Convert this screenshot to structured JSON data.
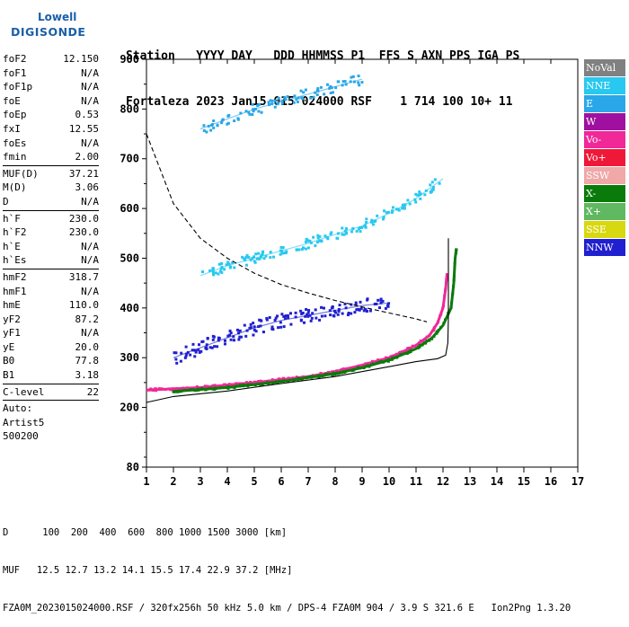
{
  "logo": {
    "line1": "Lowell",
    "line2": "DIGISONDE"
  },
  "header": {
    "line1": "Station   YYYY DAY   DDD HHMMSS P1  FFS S AXN PPS IGA PS",
    "line2": "Fortaleza 2023 Jan15 015 024000 RSF    1 714 100 10+ 11"
  },
  "params": [
    {
      "group": [
        {
          "label": "foF2",
          "value": "12.150"
        },
        {
          "label": "foF1",
          "value": "N/A"
        },
        {
          "label": "foF1p",
          "value": "N/A"
        },
        {
          "label": "foE",
          "value": "N/A"
        },
        {
          "label": "foEp",
          "value": "0.53"
        },
        {
          "label": "fxI",
          "value": "12.55"
        },
        {
          "label": "foEs",
          "value": "N/A"
        },
        {
          "label": "fmin",
          "value": "2.00"
        }
      ]
    },
    {
      "group": [
        {
          "label": "MUF(D)",
          "value": "37.21"
        },
        {
          "label": "M(D)",
          "value": "3.06"
        },
        {
          "label": "D",
          "value": "N/A"
        }
      ]
    },
    {
      "group": [
        {
          "label": "h`F",
          "value": "230.0"
        },
        {
          "label": "h`F2",
          "value": "230.0"
        },
        {
          "label": "h`E",
          "value": "N/A"
        },
        {
          "label": "h`Es",
          "value": "N/A"
        }
      ]
    },
    {
      "group": [
        {
          "label": "hmF2",
          "value": "318.7"
        },
        {
          "label": "hmF1",
          "value": "N/A"
        },
        {
          "label": "hmE",
          "value": "110.0"
        },
        {
          "label": "yF2",
          "value": "87.2"
        },
        {
          "label": "yF1",
          "value": "N/A"
        },
        {
          "label": "yE",
          "value": "20.0"
        },
        {
          "label": "B0",
          "value": "77.8"
        },
        {
          "label": "B1",
          "value": "3.18"
        }
      ]
    },
    {
      "group": [
        {
          "label": "C-level",
          "value": "22"
        }
      ]
    },
    {
      "group": [
        {
          "label": "Auto:",
          "value": ""
        },
        {
          "label": "Artist5",
          "value": ""
        },
        {
          "label": "500200",
          "value": ""
        }
      ]
    }
  ],
  "legend": [
    {
      "label": "NoVal",
      "color": "#808080"
    },
    {
      "label": "NNE",
      "color": "#29c8f0"
    },
    {
      "label": "E",
      "color": "#2aa7e8"
    },
    {
      "label": "W",
      "color": "#a010a0"
    },
    {
      "label": "Vo-",
      "color": "#f02898"
    },
    {
      "label": "Vo+",
      "color": "#f01838"
    },
    {
      "label": "SSW",
      "color": "#f0a8a8"
    },
    {
      "label": "X-",
      "color": "#0a7a0a"
    },
    {
      "label": "X+",
      "color": "#60b860"
    },
    {
      "label": "SSE",
      "color": "#d8d810"
    },
    {
      "label": "NNW",
      "color": "#2020d0"
    }
  ],
  "footer": {
    "line1": "D      100  200  400  600  800 1000 1500 3000 [km]",
    "line2": "MUF   12.5 12.7 13.2 14.1 15.5 17.4 22.9 37.2 [MHz]",
    "line3": "FZA0M_2023015024000.RSF / 320fx256h 50 kHz 5.0 km / DPS-4 FZA0M 904 / 3.9 S 321.6 E   Ion2Png 1.3.20"
  },
  "chart_data": {
    "type": "scatter",
    "x_ticks": [
      1,
      2,
      3,
      4,
      5,
      6,
      7,
      8,
      9,
      10,
      11,
      12,
      13,
      14,
      15,
      16,
      17
    ],
    "y_ticks": [
      80,
      200,
      300,
      400,
      500,
      600,
      700,
      800,
      900
    ],
    "xlim": [
      1,
      17
    ],
    "ylim": [
      80,
      900
    ],
    "grid": false,
    "legend_position": "right",
    "traces": [
      {
        "name": "F2 ordinary trace",
        "color": "#f02898",
        "points": [
          [
            1,
            235
          ],
          [
            3,
            240
          ],
          [
            5,
            250
          ],
          [
            7,
            262
          ],
          [
            8,
            272
          ],
          [
            9,
            285
          ],
          [
            10,
            300
          ],
          [
            10.5,
            312
          ],
          [
            11,
            325
          ],
          [
            11.5,
            345
          ],
          [
            11.8,
            370
          ],
          [
            12,
            400
          ],
          [
            12.1,
            440
          ],
          [
            12.15,
            470
          ]
        ]
      },
      {
        "name": "F2 extraordinary trace",
        "color": "#0a7a0a",
        "points": [
          [
            2,
            232
          ],
          [
            4,
            240
          ],
          [
            6,
            252
          ],
          [
            8,
            268
          ],
          [
            9,
            280
          ],
          [
            10,
            295
          ],
          [
            11,
            318
          ],
          [
            11.6,
            340
          ],
          [
            12,
            365
          ],
          [
            12.3,
            400
          ],
          [
            12.4,
            450
          ],
          [
            12.45,
            500
          ],
          [
            12.5,
            520
          ]
        ]
      },
      {
        "name": "multihop echoes",
        "color": "#2020d0",
        "points": [
          [
            2,
            300
          ],
          [
            3,
            320
          ],
          [
            4,
            340
          ],
          [
            5,
            360
          ],
          [
            6,
            375
          ],
          [
            7,
            385
          ],
          [
            8,
            395
          ],
          [
            9,
            405
          ],
          [
            10,
            410
          ]
        ]
      },
      {
        "name": "second hop",
        "color": "#29c8f0",
        "points": [
          [
            3,
            465
          ],
          [
            4,
            485
          ],
          [
            5,
            500
          ],
          [
            6,
            515
          ],
          [
            7,
            530
          ],
          [
            8,
            548
          ],
          [
            9,
            565
          ],
          [
            10,
            590
          ],
          [
            11,
            620
          ],
          [
            12,
            660
          ]
        ]
      },
      {
        "name": "third hop",
        "color": "#2aa7e8",
        "points": [
          [
            3,
            760
          ],
          [
            4,
            780
          ],
          [
            5,
            800
          ],
          [
            6,
            815
          ],
          [
            7,
            830
          ],
          [
            8,
            845
          ],
          [
            9,
            860
          ]
        ]
      }
    ],
    "profile_curve": [
      [
        1,
        210
      ],
      [
        2,
        222
      ],
      [
        4,
        233
      ],
      [
        6,
        248
      ],
      [
        8,
        262
      ],
      [
        10,
        282
      ],
      [
        11,
        292
      ],
      [
        11.8,
        298
      ],
      [
        12.1,
        305
      ],
      [
        12.18,
        330
      ],
      [
        12.2,
        380
      ],
      [
        12.2,
        450
      ],
      [
        12.2,
        540
      ]
    ],
    "muf_curve": [
      [
        1,
        750
      ],
      [
        2,
        610
      ],
      [
        3,
        540
      ],
      [
        4,
        500
      ],
      [
        5,
        470
      ],
      [
        6,
        447
      ],
      [
        7,
        430
      ],
      [
        8,
        415
      ],
      [
        9,
        402
      ],
      [
        10,
        390
      ],
      [
        11,
        378
      ],
      [
        11.4,
        372
      ]
    ]
  }
}
